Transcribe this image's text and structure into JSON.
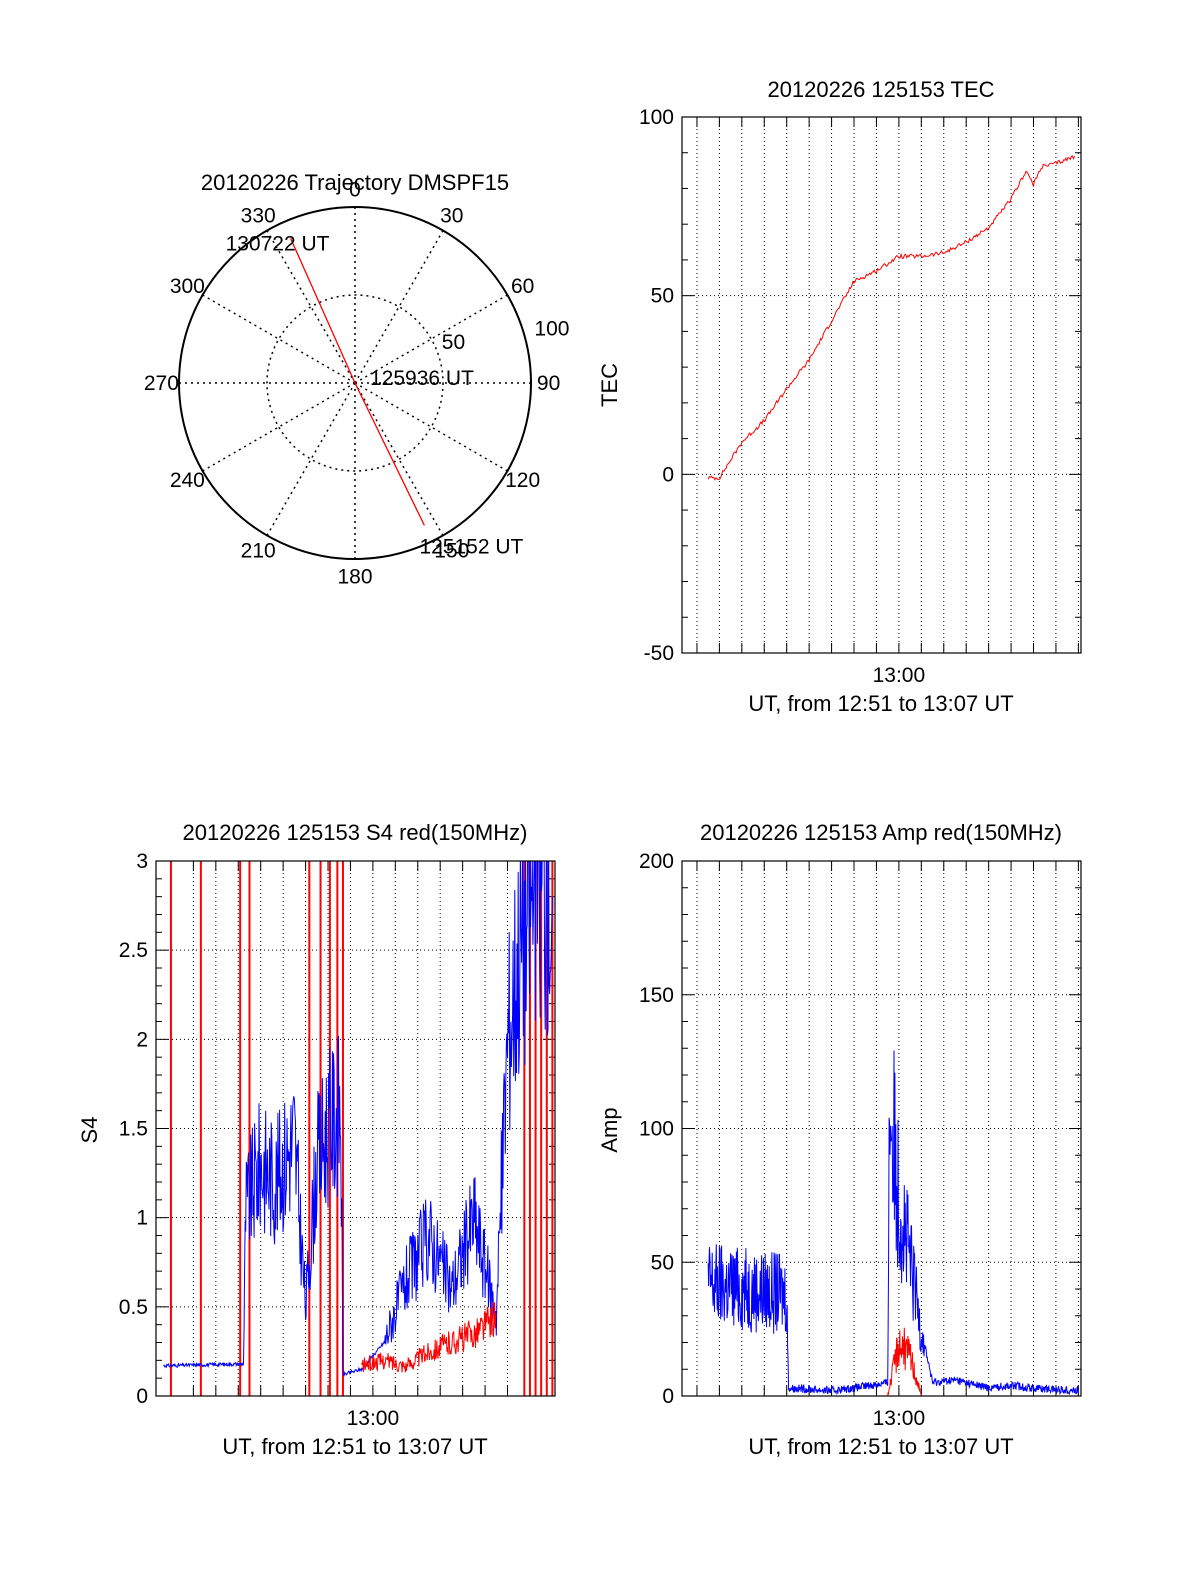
{
  "colors": {
    "red": "#ff0000",
    "blue": "#0000ff",
    "axis": "#000000"
  },
  "chart_data": [
    {
      "type": "polar",
      "title": "20120226 Trajectory DMSPF15",
      "angle_labels": [
        "0",
        "30",
        "60",
        "90",
        "120",
        "150",
        "180",
        "210",
        "240",
        "270",
        "300",
        "330"
      ],
      "radial_labels": [
        "50",
        "100"
      ],
      "rlim": [
        0,
        100
      ],
      "grid": true,
      "series": [
        {
          "color": "red",
          "points": [
            {
              "az_deg": 336,
              "r": 90
            },
            {
              "az_deg": 0,
              "r": 0
            },
            {
              "az_deg": 154,
              "r": 90
            }
          ]
        }
      ],
      "annotations": [
        {
          "text": "130722 UT",
          "az_deg": 336,
          "r": 90
        },
        {
          "text": "125936 UT",
          "az_deg": 0,
          "r": 0
        },
        {
          "text": "125152 UT",
          "az_deg": 154,
          "r": 90
        }
      ]
    },
    {
      "type": "line",
      "title": "20120226 125153 TEC",
      "ylabel": "TEC",
      "xlabel": "UT, from 12:51 to 13:07 UT",
      "xlim": [
        "12:50:20",
        "13:08:07"
      ],
      "ylim": [
        -50,
        100
      ],
      "yticks": [
        -50,
        0,
        50,
        100
      ],
      "xticks": [
        {
          "t": "13:00:00",
          "label": "13:00"
        }
      ],
      "grid": true,
      "series": [
        {
          "color": "red",
          "x": [
            "12:51:30",
            "12:52:00",
            "12:53:00",
            "12:54:00",
            "12:55:00",
            "12:56:00",
            "12:57:00",
            "12:58:00",
            "12:59:00",
            "13:00:00",
            "13:01:00",
            "13:02:00",
            "13:03:00",
            "13:04:00",
            "13:05:00",
            "13:05:40",
            "13:06:00",
            "13:06:20",
            "13:07:00",
            "13:07:50"
          ],
          "y": [
            -1,
            -1,
            9,
            15,
            24,
            32,
            43,
            54,
            57,
            61,
            61,
            62,
            65,
            69,
            77,
            85,
            81,
            86,
            87,
            89
          ]
        }
      ]
    },
    {
      "type": "line",
      "title": "20120226 125153 S4 red(150MHz)",
      "ylabel": "S4",
      "xlabel": "UT, from 12:51 to 13:07 UT",
      "xlim": [
        "12:50:20",
        "13:08:07"
      ],
      "ylim": [
        0,
        3
      ],
      "yticks": [
        0,
        0.5,
        1,
        1.5,
        2,
        2.5,
        3
      ],
      "ytick_labels": [
        "0",
        "0.5",
        "1",
        "1.5",
        "2",
        "2.5",
        "3"
      ],
      "xticks": [
        {
          "t": "13:00:00",
          "label": "13:00"
        }
      ],
      "grid": true,
      "series": [
        {
          "color": "blue",
          "x": [
            "12:50:40",
            "12:54:14",
            "12:54:20",
            "12:55:00",
            "12:55:40",
            "12:56:30",
            "12:57:00",
            "12:57:30",
            "12:58:00",
            "12:58:34",
            "12:58:40",
            "12:59:30",
            "13:00:30",
            "13:01:30",
            "13:02:30",
            "13:03:30",
            "13:04:30",
            "13:05:30",
            "13:06:00",
            "13:06:30",
            "13:07:20",
            "13:08:00"
          ],
          "y": [
            0.17,
            0.18,
            1.05,
            1.3,
            1.2,
            1.45,
            0.5,
            1.3,
            1.5,
            1.6,
            0.12,
            0.15,
            0.3,
            0.65,
            0.9,
            0.6,
            1.0,
            0.45,
            2.0,
            2.5,
            2.9,
            2.8
          ]
        },
        {
          "color": "red",
          "x": [
            "12:59:30",
            "13:00:30",
            "13:01:30",
            "13:02:30",
            "13:03:30",
            "13:04:30",
            "13:05:30"
          ],
          "y": [
            0.17,
            0.2,
            0.17,
            0.25,
            0.3,
            0.35,
            0.45
          ]
        }
      ],
      "red_spikes": [
        "12:51:00",
        "12:52:20",
        "12:54:05",
        "12:54:30",
        "12:57:10",
        "12:57:40",
        "12:58:05",
        "12:58:25",
        "12:58:40",
        "13:06:45",
        "13:07:00",
        "13:07:15",
        "13:07:30",
        "13:07:45",
        "13:08:00"
      ]
    },
    {
      "type": "line",
      "title": "20120226 125153 Amp red(150MHz)",
      "ylabel": "Amp",
      "xlabel": "UT, from 12:51 to 13:07 UT",
      "xlim": [
        "12:50:20",
        "13:08:07"
      ],
      "ylim": [
        0,
        200
      ],
      "yticks": [
        0,
        50,
        100,
        150,
        200
      ],
      "xticks": [
        {
          "t": "13:00:00",
          "label": "13:00"
        }
      ],
      "grid": true,
      "series": [
        {
          "color": "blue",
          "x": [
            "12:51:30",
            "12:53:00",
            "12:55:00",
            "12:55:05",
            "12:57:00",
            "12:58:00",
            "12:59:30",
            "12:59:35",
            "13:00:00",
            "13:00:30",
            "13:01:00",
            "13:01:30",
            "13:02:30",
            "13:04:00",
            "13:05:00",
            "13:06:00",
            "13:08:00"
          ],
          "y": [
            42,
            40,
            38,
            3,
            2,
            3,
            5,
            110,
            75,
            50,
            25,
            5,
            6,
            3,
            4,
            3,
            2
          ]
        },
        {
          "color": "red",
          "x": [
            "12:51:30",
            "12:59:30",
            "13:00:00",
            "13:00:30",
            "13:01:00",
            "13:02:00",
            "13:08:00"
          ],
          "y": [
            0,
            0,
            20,
            15,
            0,
            0,
            0
          ]
        }
      ]
    }
  ]
}
